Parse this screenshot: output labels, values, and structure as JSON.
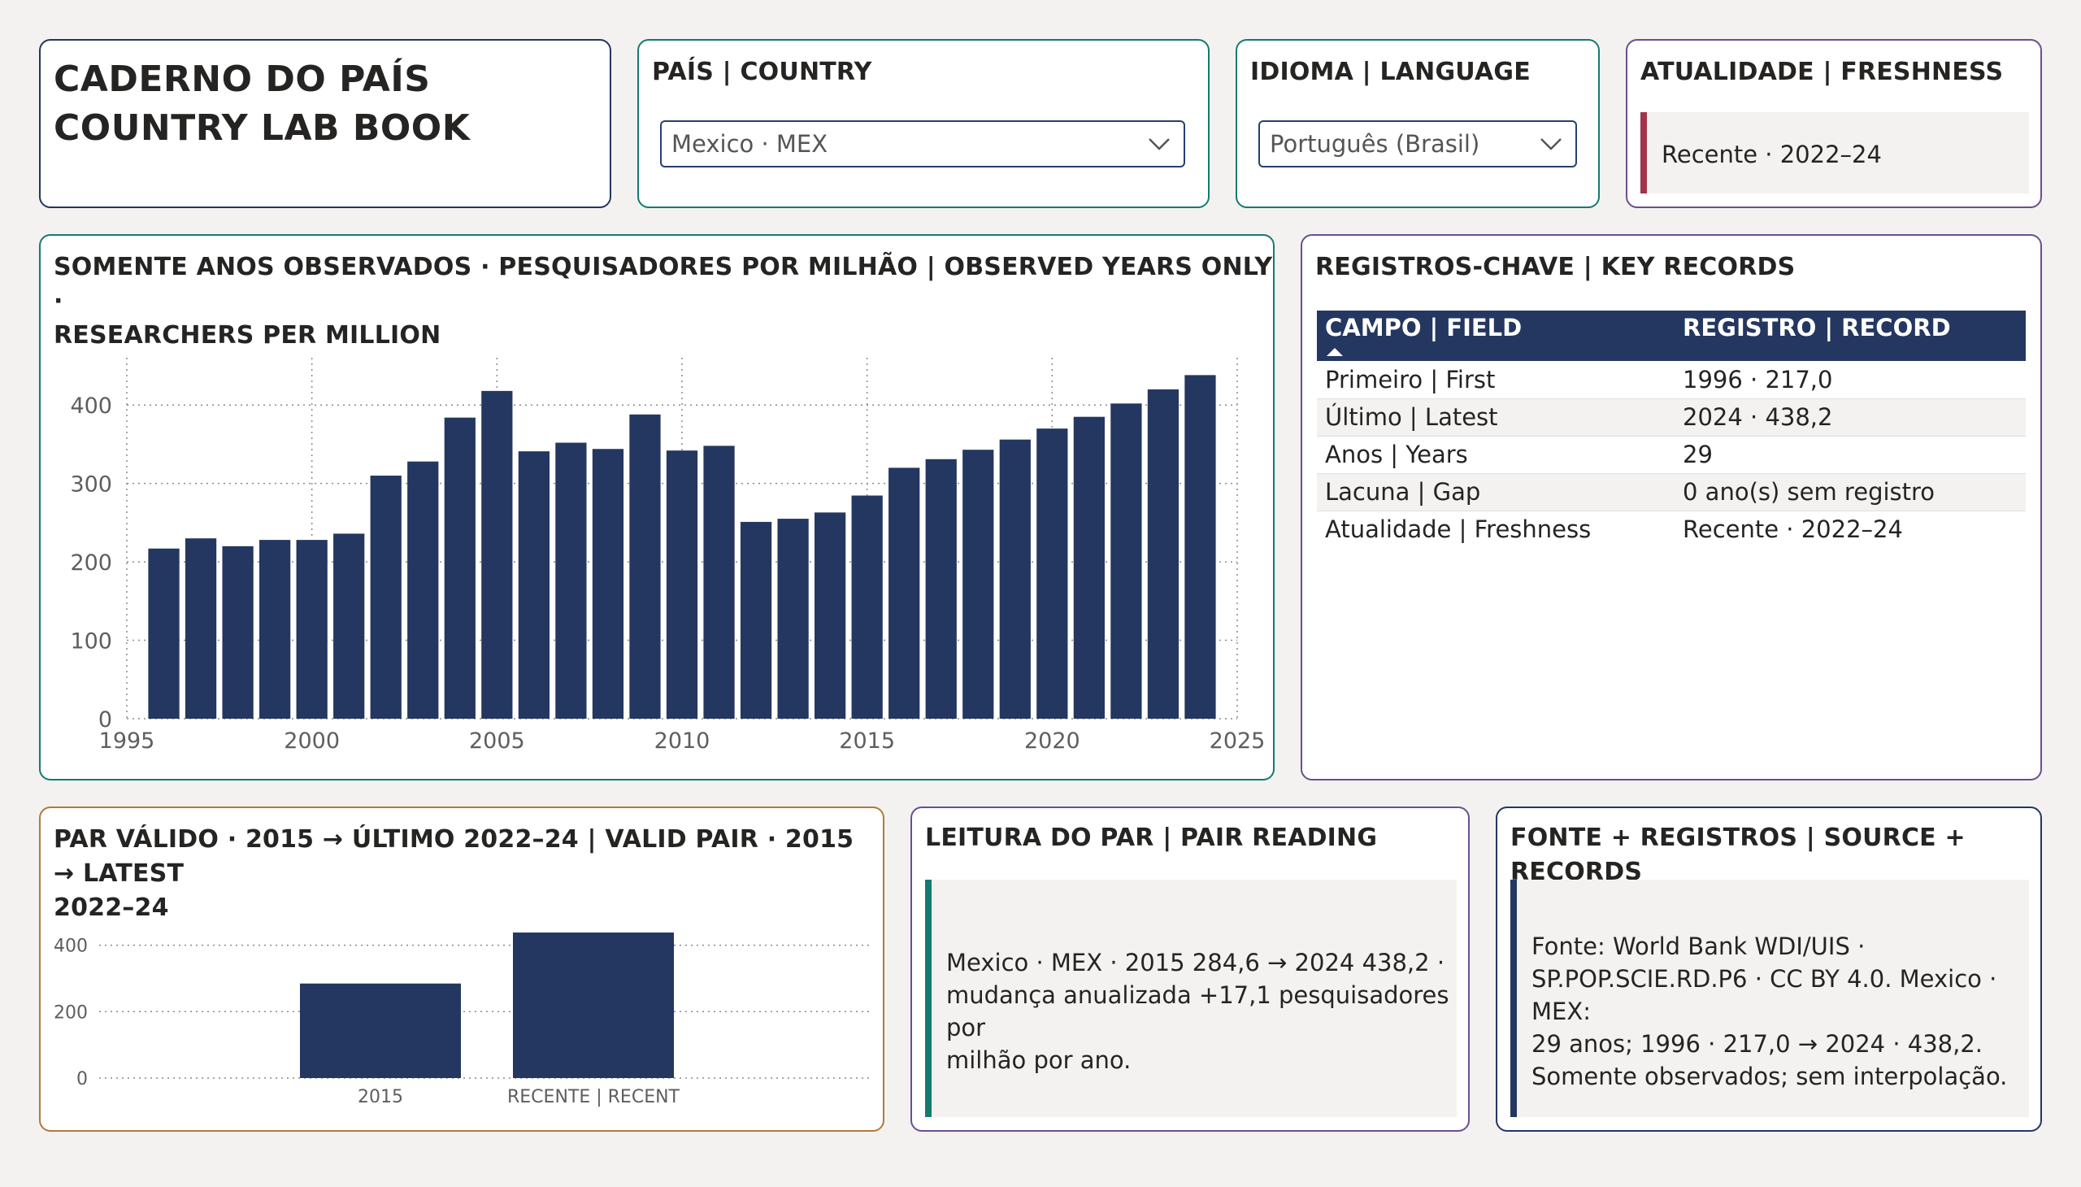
{
  "header": {
    "title_line1": "CADERNO DO PAÍS",
    "title_line2": "COUNTRY LAB BOOK"
  },
  "country_slicer": {
    "label": "PAÍS | COUNTRY",
    "value": "Mexico · MEX",
    "icon": "chevron-down-icon"
  },
  "language_slicer": {
    "label": "IDIOMA | LANGUAGE",
    "value": "Português (Brasil)",
    "icon": "chevron-down-icon"
  },
  "freshness": {
    "label": "ATUALIDADE | FRESHNESS",
    "value": "Recente · 2022–24"
  },
  "main_chart": {
    "title_line1": "SOMENTE ANOS OBSERVADOS · PESQUISADORES POR MILHÃO | OBSERVED YEARS ONLY ·",
    "title_line2": "RESEARCHERS PER MILLION"
  },
  "key_records": {
    "title": "REGISTROS-CHAVE | KEY RECORDS",
    "col_field": "CAMPO | FIELD",
    "col_record": "REGISTRO | RECORD",
    "rows": [
      {
        "field": "Primeiro | First",
        "record": "1996 · 217,0"
      },
      {
        "field": "Último | Latest",
        "record": "2024 · 438,2"
      },
      {
        "field": "Anos | Years",
        "record": "29"
      },
      {
        "field": "Lacuna | Gap",
        "record": "0 ano(s) sem registro"
      },
      {
        "field": "Atualidade | Freshness",
        "record": "Recente · 2022–24"
      }
    ]
  },
  "pair_chart": {
    "title_line1": "PAR VÁLIDO · 2015 → ÚLTIMO 2022–24 | VALID PAIR · 2015 → LATEST",
    "title_line2": "2022–24"
  },
  "pair_reading": {
    "title": "LEITURA DO PAR | PAIR READING",
    "line1": "Mexico · MEX · 2015 284,6 → 2024 438,2 ·",
    "line2": "mudança anualizada +17,1 pesquisadores por",
    "line3": "milhão por ano."
  },
  "source": {
    "title": "FONTE + REGISTROS | SOURCE + RECORDS",
    "line1": "Fonte: World Bank WDI/UIS ·",
    "line2": "SP.POP.SCIE.RD.P6 · CC BY 4.0. Mexico · MEX:",
    "line3": "29 anos; 1996 · 217,0 → 2024 · 438,2.",
    "line4": "Somente observados; sem interpolação."
  },
  "colors": {
    "bar": "#243760",
    "accent_teal": "#127B70",
    "accent_purple": "#6B4E92",
    "accent_orange": "#B07A3A",
    "accent_red": "#A3334B",
    "accent_navy": "#243760"
  },
  "chart_data": [
    {
      "type": "bar",
      "x": [
        1996,
        1997,
        1998,
        1999,
        2000,
        2001,
        2002,
        2003,
        2004,
        2005,
        2006,
        2007,
        2008,
        2009,
        2010,
        2011,
        2012,
        2013,
        2014,
        2015,
        2016,
        2017,
        2018,
        2019,
        2020,
        2021,
        2022,
        2023,
        2024
      ],
      "values": [
        217.0,
        230,
        220,
        228,
        228,
        236,
        310,
        328,
        384,
        418,
        341,
        352,
        344,
        388,
        342,
        348,
        251,
        255,
        263,
        284.6,
        320,
        331,
        343,
        356,
        370,
        385,
        402,
        420,
        438.2
      ],
      "xlim": [
        1995,
        2025
      ],
      "ylim": [
        0,
        450
      ],
      "xticks": [
        1995,
        2000,
        2005,
        2010,
        2015,
        2020,
        2025
      ],
      "yticks": [
        0,
        100,
        200,
        300,
        400
      ],
      "grid": true
    },
    {
      "type": "bar",
      "categories": [
        "2015",
        "RECENTE | RECENT"
      ],
      "values": [
        284.6,
        438.2
      ],
      "ylim": [
        0,
        470
      ],
      "yticks": [
        0,
        200,
        400
      ],
      "grid": true
    }
  ]
}
